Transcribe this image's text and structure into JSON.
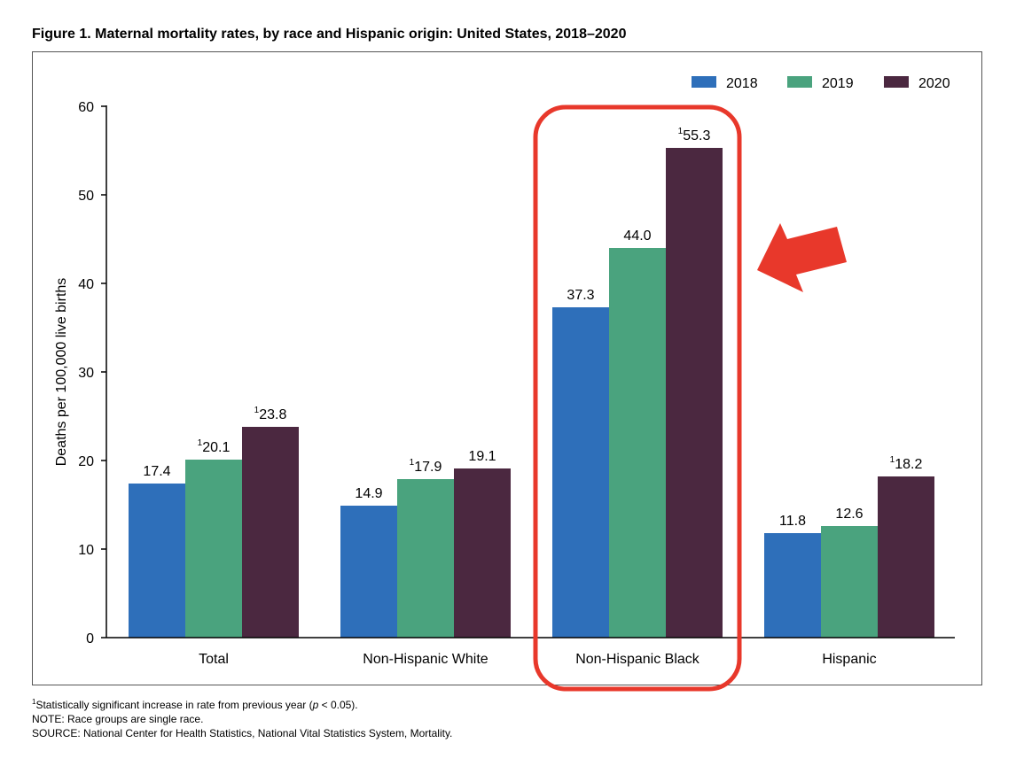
{
  "figure": {
    "title": "Figure 1. Maternal mortality rates, by race and Hispanic origin: United States, 2018–2020"
  },
  "chart_data": {
    "type": "bar",
    "ylabel": "Deaths per 100,000 live births",
    "xlabel": "",
    "ylim": [
      0,
      60
    ],
    "yticks": [
      0,
      10,
      20,
      30,
      40,
      50,
      60
    ],
    "grid": false,
    "legend_position": "top-right",
    "categories": [
      "Total",
      "Non-Hispanic White",
      "Non-Hispanic Black",
      "Hispanic"
    ],
    "series": [
      {
        "name": "2018",
        "color": "#2e6fba",
        "values": [
          17.4,
          14.9,
          37.3,
          11.8
        ],
        "labels": [
          "17.4",
          "14.9",
          "37.3",
          "11.8"
        ],
        "significant": [
          false,
          false,
          false,
          false
        ]
      },
      {
        "name": "2019",
        "color": "#4aa37e",
        "values": [
          20.1,
          17.9,
          44.0,
          12.6
        ],
        "labels": [
          "20.1",
          "17.9",
          "44.0",
          "12.6"
        ],
        "significant": [
          true,
          true,
          false,
          false
        ]
      },
      {
        "name": "2020",
        "color": "#4b2840",
        "values": [
          23.8,
          19.1,
          55.3,
          18.2
        ],
        "labels": [
          "23.8",
          "19.1",
          "55.3",
          "18.2"
        ],
        "significant": [
          true,
          false,
          true,
          true
        ]
      }
    ],
    "significance_marker": "1",
    "highlight": {
      "category": "Non-Hispanic Black",
      "color": "#e8382b"
    }
  },
  "notes": {
    "footnote_marker": "1",
    "footnote_text_a": "Statistically significant increase in rate from previous year (",
    "footnote_p": "p",
    "footnote_text_b": " < 0.05).",
    "note": "NOTE: Race groups are single race.",
    "source": "SOURCE: National Center for Health Statistics, National Vital Statistics System, Mortality."
  }
}
